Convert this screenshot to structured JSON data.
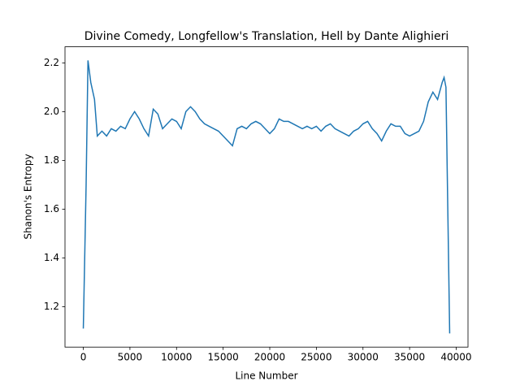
{
  "chart_data": {
    "type": "line",
    "title": "Divine Comedy, Longfellow's Translation, Hell by Dante Alighieri",
    "x_label": "Line Number",
    "y_label": "Shanon's Entropy",
    "xlim": [
      -1965,
      41265
    ],
    "ylim": [
      1.034,
      2.266
    ],
    "xticks": [
      0,
      5000,
      10000,
      15000,
      20000,
      25000,
      30000,
      35000,
      40000
    ],
    "yticks": [
      1.2,
      1.4,
      1.6,
      1.8,
      {
        "value": 2,
        "label": "2.0"
      },
      2.2
    ],
    "grid": false,
    "x": [
      0,
      300,
      500,
      800,
      1200,
      1500,
      2000,
      2500,
      3000,
      3500,
      4000,
      4500,
      5000,
      5500,
      6000,
      6500,
      7000,
      7500,
      8000,
      8500,
      9000,
      9500,
      10000,
      10500,
      11000,
      11500,
      12000,
      12500,
      13000,
      13500,
      14000,
      14500,
      15000,
      15500,
      16000,
      16500,
      17000,
      17500,
      18000,
      18500,
      19000,
      19500,
      20000,
      20500,
      21000,
      21500,
      22000,
      22500,
      23000,
      23500,
      24000,
      24500,
      25000,
      25500,
      26000,
      26500,
      27000,
      27500,
      28000,
      28500,
      29000,
      29500,
      30000,
      30500,
      31000,
      31500,
      32000,
      32500,
      33000,
      33500,
      34000,
      34500,
      35000,
      35500,
      36000,
      36500,
      37000,
      37500,
      38000,
      38500,
      38700,
      38900,
      39300
    ],
    "series": [
      {
        "name": "entropy",
        "color": "#1f77b4",
        "values": [
          1.11,
          1.7,
          2.21,
          2.12,
          2.05,
          1.9,
          1.92,
          1.9,
          1.93,
          1.92,
          1.94,
          1.93,
          1.97,
          2.0,
          1.97,
          1.93,
          1.9,
          2.01,
          1.99,
          1.93,
          1.95,
          1.97,
          1.96,
          1.93,
          2.0,
          2.02,
          2.0,
          1.97,
          1.95,
          1.94,
          1.93,
          1.92,
          1.9,
          1.88,
          1.86,
          1.93,
          1.94,
          1.93,
          1.95,
          1.96,
          1.95,
          1.93,
          1.91,
          1.93,
          1.97,
          1.96,
          1.96,
          1.95,
          1.94,
          1.93,
          1.94,
          1.93,
          1.94,
          1.92,
          1.94,
          1.95,
          1.93,
          1.92,
          1.91,
          1.9,
          1.92,
          1.93,
          1.95,
          1.96,
          1.93,
          1.91,
          1.88,
          1.92,
          1.95,
          1.94,
          1.94,
          1.91,
          1.9,
          1.91,
          1.92,
          1.96,
          2.04,
          2.08,
          2.05,
          2.12,
          2.14,
          2.1,
          1.09
        ]
      }
    ]
  }
}
